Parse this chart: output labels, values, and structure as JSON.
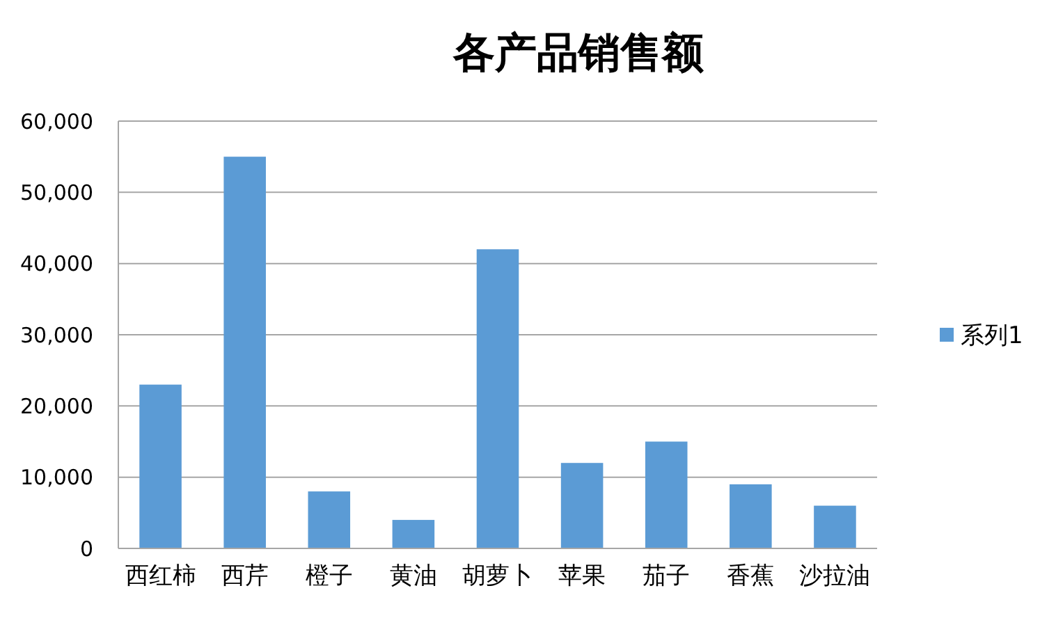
{
  "chart_data": {
    "type": "bar",
    "title": "各产品销售额",
    "categories": [
      "西红柿",
      "西芹",
      "橙子",
      "黄油",
      "胡萝卜",
      "苹果",
      "茄子",
      "香蕉",
      "沙拉油"
    ],
    "series": [
      {
        "name": "系列1",
        "color": "#5b9bd5",
        "values": [
          23000,
          55000,
          8000,
          4000,
          42000,
          12000,
          15000,
          9000,
          6000
        ]
      }
    ],
    "ylim": [
      0,
      60000
    ],
    "yticks": [
      {
        "value": 0,
        "label": "0"
      },
      {
        "value": 10000,
        "label": "10,000"
      },
      {
        "value": 20000,
        "label": "20,000"
      },
      {
        "value": 30000,
        "label": "30,000"
      },
      {
        "value": 40000,
        "label": "40,000"
      },
      {
        "value": 50000,
        "label": "50,000"
      },
      {
        "value": 60000,
        "label": "60,000"
      }
    ],
    "grid": "y",
    "legend": "right"
  }
}
